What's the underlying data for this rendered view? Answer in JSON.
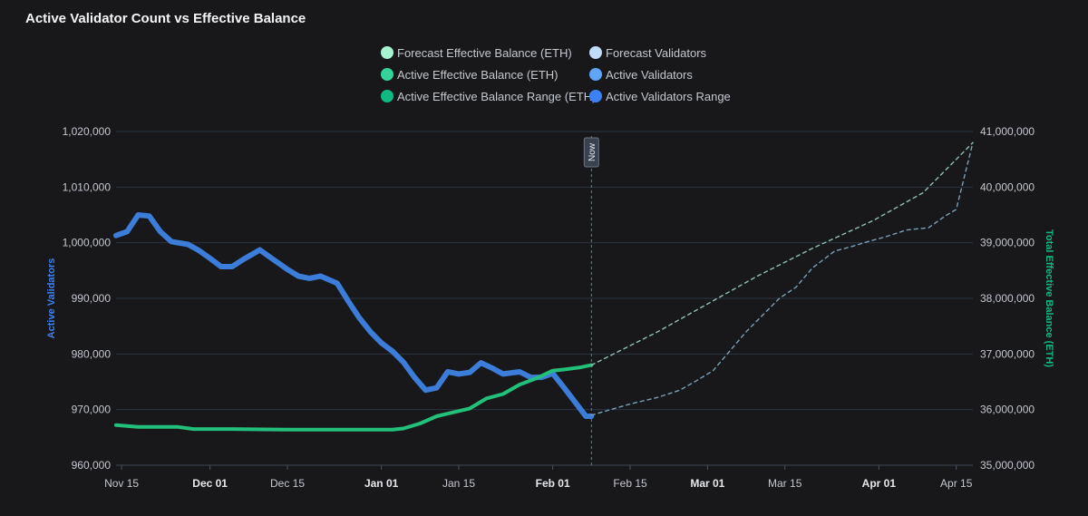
{
  "title": "Active Validator Count vs Effective Balance",
  "legend": [
    {
      "label": "Forecast Effective Balance (ETH)",
      "color": "#a7f3d0"
    },
    {
      "label": "Forecast Validators",
      "color": "#bfdbfe"
    },
    {
      "label": "Active Effective Balance (ETH)",
      "color": "#34d399"
    },
    {
      "label": "Active Validators",
      "color": "#60a5fa"
    },
    {
      "label": "Active Effective Balance Range (ETH)",
      "color": "#10b981"
    },
    {
      "label": "Active Validators Range",
      "color": "#3b82f6"
    }
  ],
  "now_label": "Now",
  "colors": {
    "validators": "#3b7dd8",
    "balance": "#22c07a",
    "forecast_validators": "#7aa0b8",
    "forecast_balance": "#8fc0b0",
    "grid": "#2c3340",
    "now_line": "#6b7f86"
  },
  "chart_data": {
    "type": "line",
    "title": "Active Validator Count vs Effective Balance",
    "x_ticks": [
      {
        "label": "Nov 15",
        "date": "2024-11-15",
        "bold": false
      },
      {
        "label": "Dec 01",
        "date": "2024-12-01",
        "bold": true
      },
      {
        "label": "Dec 15",
        "date": "2024-12-15",
        "bold": false
      },
      {
        "label": "Jan 01",
        "date": "2025-01-01",
        "bold": true
      },
      {
        "label": "Jan 15",
        "date": "2025-01-15",
        "bold": false
      },
      {
        "label": "Feb 01",
        "date": "2025-02-01",
        "bold": true
      },
      {
        "label": "Feb 15",
        "date": "2025-02-15",
        "bold": false
      },
      {
        "label": "Mar 01",
        "date": "2025-03-01",
        "bold": true
      },
      {
        "label": "Mar 15",
        "date": "2025-03-15",
        "bold": false
      },
      {
        "label": "Apr 01",
        "date": "2025-04-01",
        "bold": true
      },
      {
        "label": "Apr 15",
        "date": "2025-04-15",
        "bold": false
      }
    ],
    "x_range": [
      "2024-11-14",
      "2025-04-18"
    ],
    "now_date": "2025-02-08",
    "y_left": {
      "label": "Active Validators",
      "range": [
        960000,
        1020000
      ],
      "ticks": [
        960000,
        970000,
        980000,
        990000,
        1000000,
        1010000,
        1020000
      ],
      "tick_labels": [
        "960,000",
        "970,000",
        "980,000",
        "990,000",
        "1,000,000",
        "1,010,000",
        "1,020,000"
      ]
    },
    "y_right": {
      "label": "Total Effective Balance (ETH)",
      "range": [
        35000000,
        41000000
      ],
      "ticks": [
        35000000,
        36000000,
        37000000,
        38000000,
        39000000,
        40000000,
        41000000
      ],
      "tick_labels": [
        "35,000,000",
        "36,000,000",
        "37,000,000",
        "38,000,000",
        "39,000,000",
        "40,000,000",
        "41,000,000"
      ]
    },
    "series": [
      {
        "name": "Active Validators",
        "axis": "left",
        "points": [
          [
            "2024-11-14",
            1001300
          ],
          [
            "2024-11-16",
            1002000
          ],
          [
            "2024-11-18",
            1005000
          ],
          [
            "2024-11-20",
            1004800
          ],
          [
            "2024-11-22",
            1002000
          ],
          [
            "2024-11-24",
            1000200
          ],
          [
            "2024-11-27",
            999700
          ],
          [
            "2024-11-29",
            998600
          ],
          [
            "2024-12-01",
            997200
          ],
          [
            "2024-12-03",
            995700
          ],
          [
            "2024-12-05",
            995700
          ],
          [
            "2024-12-07",
            997000
          ],
          [
            "2024-12-10",
            998700
          ],
          [
            "2024-12-12",
            997300
          ],
          [
            "2024-12-15",
            995200
          ],
          [
            "2024-12-17",
            994000
          ],
          [
            "2024-12-19",
            993600
          ],
          [
            "2024-12-21",
            994000
          ],
          [
            "2024-12-24",
            992700
          ],
          [
            "2024-12-26",
            989500
          ],
          [
            "2024-12-28",
            986500
          ],
          [
            "2024-12-30",
            984000
          ],
          [
            "2025-01-01",
            982000
          ],
          [
            "2025-01-03",
            980500
          ],
          [
            "2025-01-05",
            978500
          ],
          [
            "2025-01-07",
            975800
          ],
          [
            "2025-01-09",
            973500
          ],
          [
            "2025-01-11",
            973900
          ],
          [
            "2025-01-13",
            976800
          ],
          [
            "2025-01-15",
            976400
          ],
          [
            "2025-01-17",
            976700
          ],
          [
            "2025-01-19",
            978400
          ],
          [
            "2025-01-21",
            977500
          ],
          [
            "2025-01-23",
            976400
          ],
          [
            "2025-01-26",
            976800
          ],
          [
            "2025-01-28",
            975800
          ],
          [
            "2025-01-30",
            975800
          ],
          [
            "2025-02-01",
            976500
          ],
          [
            "2025-02-03",
            974000
          ],
          [
            "2025-02-05",
            971400
          ],
          [
            "2025-02-07",
            968800
          ],
          [
            "2025-02-08",
            968800
          ]
        ]
      },
      {
        "name": "Active Effective Balance (ETH)",
        "axis": "right",
        "points": [
          [
            "2024-11-14",
            35720000
          ],
          [
            "2024-11-18",
            35690000
          ],
          [
            "2024-11-25",
            35690000
          ],
          [
            "2024-11-28",
            35650000
          ],
          [
            "2024-12-05",
            35650000
          ],
          [
            "2024-12-15",
            35640000
          ],
          [
            "2024-12-25",
            35640000
          ],
          [
            "2025-01-03",
            35640000
          ],
          [
            "2025-01-05",
            35660000
          ],
          [
            "2025-01-08",
            35750000
          ],
          [
            "2025-01-11",
            35880000
          ],
          [
            "2025-01-14",
            35950000
          ],
          [
            "2025-01-17",
            36020000
          ],
          [
            "2025-01-20",
            36200000
          ],
          [
            "2025-01-23",
            36280000
          ],
          [
            "2025-01-26",
            36450000
          ],
          [
            "2025-01-29",
            36560000
          ],
          [
            "2025-02-01",
            36700000
          ],
          [
            "2025-02-03",
            36720000
          ],
          [
            "2025-02-06",
            36760000
          ],
          [
            "2025-02-08",
            36800000
          ]
        ]
      },
      {
        "name": "Forecast Validators",
        "axis": "left",
        "points": [
          [
            "2025-02-08",
            969000
          ],
          [
            "2025-02-15",
            971000
          ],
          [
            "2025-02-20",
            972200
          ],
          [
            "2025-02-24",
            973500
          ],
          [
            "2025-02-27",
            975200
          ],
          [
            "2025-03-02",
            977000
          ],
          [
            "2025-03-05",
            980500
          ],
          [
            "2025-03-08",
            984000
          ],
          [
            "2025-03-11",
            987000
          ],
          [
            "2025-03-14",
            990000
          ],
          [
            "2025-03-17",
            992000
          ],
          [
            "2025-03-20",
            995500
          ],
          [
            "2025-03-24",
            998500
          ],
          [
            "2025-03-27",
            999300
          ],
          [
            "2025-03-30",
            1000200
          ],
          [
            "2025-04-02",
            1001000
          ],
          [
            "2025-04-06",
            1002300
          ],
          [
            "2025-04-10",
            1002700
          ],
          [
            "2025-04-13",
            1004800
          ],
          [
            "2025-04-15",
            1006000
          ],
          [
            "2025-04-18",
            1018000
          ]
        ]
      },
      {
        "name": "Forecast Effective Balance (ETH)",
        "axis": "right",
        "points": [
          [
            "2025-02-08",
            36800000
          ],
          [
            "2025-02-20",
            37400000
          ],
          [
            "2025-03-01",
            37900000
          ],
          [
            "2025-03-10",
            38400000
          ],
          [
            "2025-03-20",
            38900000
          ],
          [
            "2025-03-31",
            39400000
          ],
          [
            "2025-04-09",
            39900000
          ],
          [
            "2025-04-18",
            40800000
          ]
        ]
      }
    ]
  }
}
